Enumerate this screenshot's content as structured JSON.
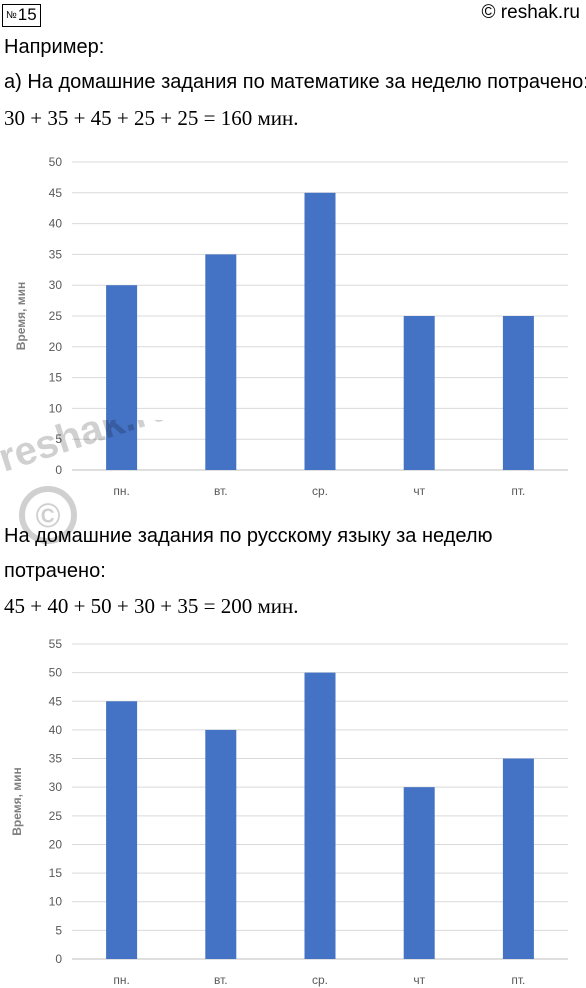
{
  "header": {
    "badge_prefix": "№",
    "badge_number": "15",
    "site": "© reshak.ru"
  },
  "text": {
    "intro": "Например:",
    "math_line": "а) На домашние задания по математике за неделю потрачено:",
    "math_eq": "30 + 35 + 45 + 25 + 25 = 160 мин.",
    "rus_line1": "На домашние задания по русскому языку за неделю",
    "rus_line2": "потрачено:",
    "rus_eq": "45 + 40 + 50 + 30 + 35 = 200 мин."
  },
  "watermark": {
    "text": "reshak.ru",
    "symbol": "©"
  },
  "chart_data": [
    {
      "type": "bar",
      "categories": [
        "пн.",
        "вт.",
        "ср.",
        "чт",
        "пт."
      ],
      "values": [
        30,
        35,
        45,
        25,
        25
      ],
      "ylabel": "Время, мин",
      "xlabel": "",
      "ylim": [
        0,
        50
      ],
      "yticks": [
        0,
        5,
        10,
        15,
        20,
        25,
        30,
        35,
        40,
        45,
        50
      ],
      "grid": true,
      "color": "#4472C4"
    },
    {
      "type": "bar",
      "categories": [
        "пн.",
        "вт.",
        "ср.",
        "чт",
        "пт."
      ],
      "values": [
        45,
        40,
        50,
        30,
        35
      ],
      "ylabel": "Время, мин",
      "xlabel": "",
      "ylim": [
        0,
        55
      ],
      "yticks": [
        0,
        5,
        10,
        15,
        20,
        25,
        30,
        35,
        40,
        45,
        50,
        55
      ],
      "grid": true,
      "color": "#4472C4"
    }
  ]
}
